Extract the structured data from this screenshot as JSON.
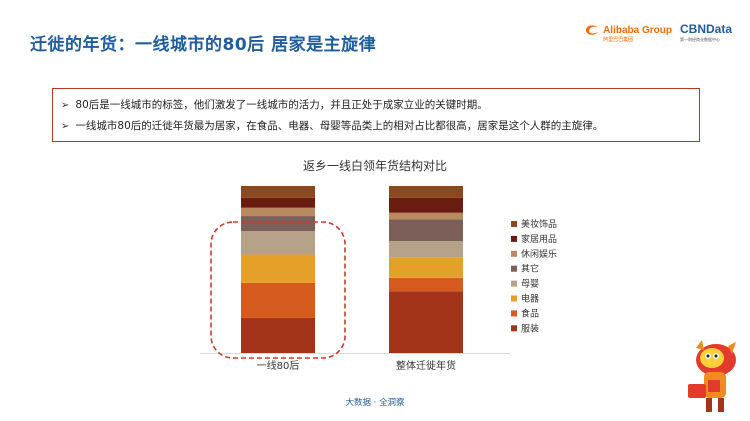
{
  "page": {
    "title": "迁徙的年货：一线城市的80后 居家是主旋律",
    "footer": "大数据 · 全洞察"
  },
  "logos": {
    "alibaba": "Alibaba Group",
    "alibaba_sub": "阿里巴巴集团",
    "cbndata": "CBNData",
    "cbndata_sub": "第一财经商业数据中心"
  },
  "callout": {
    "items": [
      "80后是一线城市的标签，他们激发了一线城市的活力，并且正处于成家立业的关键时期。",
      "一线城市80后的迁徙年货最为居家，在食品、电器、母婴等品类上的相对占比都很高，居家是这个人群的主旋律。"
    ]
  },
  "chart_data": {
    "type": "bar",
    "stacked": true,
    "title": "返乡一线白领年货结构对比",
    "categories": [
      "一线80后",
      "整体迁徙年货"
    ],
    "ylim": [
      0,
      100
    ],
    "grid": false,
    "legend": "right",
    "highlight": "一线80后",
    "series": [
      {
        "name": "服装",
        "color": "#a3341a",
        "values": [
          21,
          37
        ]
      },
      {
        "name": "食品",
        "color": "#d55a1e",
        "values": [
          21,
          8
        ]
      },
      {
        "name": "电器",
        "color": "#e5a02a",
        "values": [
          17,
          12
        ]
      },
      {
        "name": "母婴",
        "color": "#b6a189",
        "values": [
          14,
          10
        ]
      },
      {
        "name": "其它",
        "color": "#7b5f58",
        "values": [
          9,
          13
        ]
      },
      {
        "name": "休闲娱乐",
        "color": "#b88a5d",
        "values": [
          5,
          4
        ]
      },
      {
        "name": "家居用品",
        "color": "#6a1c10",
        "values": [
          6,
          9
        ]
      },
      {
        "name": "美妆饰品",
        "color": "#8b4a1e",
        "values": [
          7,
          7
        ]
      }
    ]
  }
}
